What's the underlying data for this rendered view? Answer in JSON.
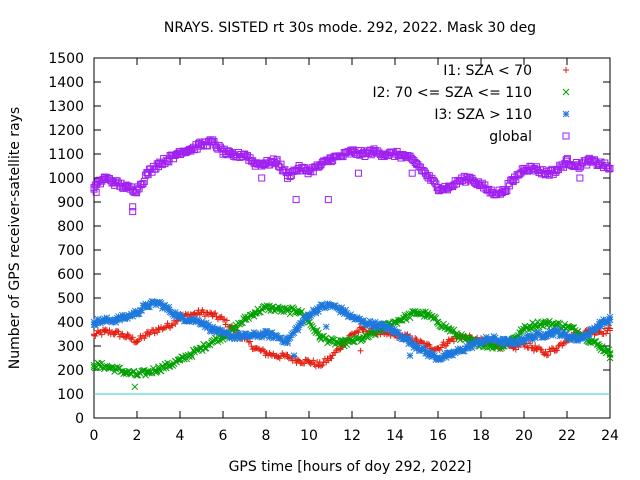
{
  "chart_data": {
    "type": "scatter",
    "title": "NRAYS. SISTED rt 30s mode. 292, 2022. Mask 30 deg",
    "xlabel": "GPS time [hours of doy 292, 2022]",
    "ylabel": "Number of GPS receiver-satellite rays",
    "xlim": [
      0,
      24
    ],
    "ylim": [
      0,
      1500
    ],
    "xticks": [
      0,
      2,
      4,
      6,
      8,
      10,
      12,
      14,
      16,
      18,
      20,
      22,
      24
    ],
    "yticks": [
      0,
      100,
      200,
      300,
      400,
      500,
      600,
      700,
      800,
      900,
      1000,
      1100,
      1200,
      1300,
      1400,
      1500
    ],
    "reference_line": {
      "y": 100,
      "color": "#33cccc"
    },
    "legend_position": "top-right",
    "series": [
      {
        "name": "I1: SZA < 70",
        "marker": "plus",
        "color": "#e51e10",
        "x": [
          0,
          0.5,
          1,
          1.5,
          2,
          2.5,
          3,
          3.5,
          4,
          4.5,
          5,
          5.5,
          6,
          6.5,
          7,
          7.5,
          8,
          8.5,
          9,
          9.5,
          10,
          10.5,
          11,
          11.5,
          12,
          12.5,
          13,
          13.5,
          14,
          14.5,
          15,
          15.5,
          16,
          16.5,
          17,
          17.5,
          18,
          18.5,
          19,
          19.5,
          20,
          20.5,
          21,
          21.5,
          22,
          22.5,
          23,
          23.5,
          24
        ],
        "y": [
          345,
          360,
          355,
          340,
          320,
          350,
          370,
          385,
          420,
          430,
          440,
          430,
          410,
          370,
          330,
          290,
          270,
          260,
          255,
          240,
          235,
          220,
          250,
          300,
          350,
          370,
          360,
          350,
          345,
          340,
          320,
          300,
          290,
          320,
          340,
          330,
          320,
          310,
          300,
          290,
          310,
          290,
          270,
          290,
          330,
          350,
          360,
          360,
          365
        ]
      },
      {
        "name": "I2: 70 <= SZA <= 110",
        "marker": "cross",
        "color": "#00a000",
        "x": [
          0,
          0.5,
          1,
          1.5,
          2,
          2.5,
          3,
          3.5,
          4,
          4.5,
          5,
          5.5,
          6,
          6.5,
          7,
          7.5,
          8,
          8.5,
          9,
          9.5,
          10,
          10.5,
          11,
          11.5,
          12,
          12.5,
          13,
          13.5,
          14,
          14.5,
          15,
          15.5,
          16,
          16.5,
          17,
          17.5,
          18,
          18.5,
          19,
          19.5,
          20,
          20.5,
          21,
          21.5,
          22,
          22.5,
          23,
          23.5,
          24
        ],
        "y": [
          220,
          215,
          205,
          190,
          180,
          190,
          205,
          220,
          240,
          265,
          290,
          320,
          340,
          370,
          410,
          440,
          460,
          455,
          445,
          450,
          400,
          340,
          320,
          310,
          320,
          330,
          350,
          380,
          400,
          420,
          440,
          430,
          400,
          370,
          340,
          320,
          310,
          300,
          300,
          330,
          370,
          390,
          395,
          390,
          380,
          360,
          330,
          300,
          270
        ]
      },
      {
        "name": "I3: SZA > 110",
        "marker": "star",
        "color": "#1e78dc",
        "x": [
          0,
          0.5,
          1,
          1.5,
          2,
          2.5,
          3,
          3.5,
          4,
          4.5,
          5,
          5.5,
          6,
          6.5,
          7,
          7.5,
          8,
          8.5,
          9,
          9.5,
          10,
          10.5,
          11,
          11.5,
          12,
          12.5,
          13,
          13.5,
          14,
          14.5,
          15,
          15.5,
          16,
          16.5,
          17,
          17.5,
          18,
          18.5,
          19,
          19.5,
          20,
          20.5,
          21,
          21.5,
          22,
          22.5,
          23,
          23.5,
          24
        ],
        "y": [
          400,
          405,
          410,
          420,
          440,
          470,
          480,
          450,
          420,
          410,
          400,
          370,
          350,
          340,
          340,
          345,
          350,
          340,
          320,
          380,
          430,
          460,
          470,
          450,
          420,
          400,
          390,
          380,
          360,
          330,
          300,
          270,
          250,
          260,
          280,
          300,
          320,
          330,
          320,
          310,
          330,
          340,
          350,
          360,
          340,
          330,
          350,
          390,
          410
        ]
      },
      {
        "name": "global",
        "marker": "square",
        "color": "#a020f0",
        "x": [
          0,
          0.5,
          1,
          1.5,
          2,
          2.5,
          3,
          3.5,
          4,
          4.5,
          5,
          5.5,
          6,
          6.5,
          7,
          7.5,
          8,
          8.5,
          9,
          9.5,
          10,
          10.5,
          11,
          11.5,
          12,
          12.5,
          13,
          13.5,
          14,
          14.5,
          15,
          15.5,
          16,
          16.5,
          17,
          17.5,
          18,
          18.5,
          19,
          19.5,
          20,
          20.5,
          21,
          21.5,
          22,
          22.5,
          23,
          23.5,
          24
        ],
        "y": [
          960,
          1000,
          980,
          960,
          950,
          1020,
          1060,
          1080,
          1110,
          1120,
          1140,
          1150,
          1110,
          1090,
          1100,
          1060,
          1060,
          1070,
          1010,
          1040,
          1030,
          1050,
          1080,
          1090,
          1110,
          1100,
          1110,
          1100,
          1100,
          1090,
          1060,
          1010,
          960,
          960,
          990,
          1000,
          970,
          940,
          940,
          990,
          1040,
          1040,
          1020,
          1030,
          1070,
          1050,
          1070,
          1060,
          1040
        ]
      }
    ],
    "outliers": [
      {
        "series": "global",
        "x": 1.8,
        "y": 860
      },
      {
        "series": "global",
        "x": 1.8,
        "y": 880
      },
      {
        "series": "global",
        "x": 9.4,
        "y": 910
      },
      {
        "series": "global",
        "x": 10.9,
        "y": 910
      },
      {
        "series": "global",
        "x": 0.1,
        "y": 940
      },
      {
        "series": "global",
        "x": 7.8,
        "y": 1000
      },
      {
        "series": "global",
        "x": 12.3,
        "y": 1020
      },
      {
        "series": "global",
        "x": 14.8,
        "y": 1020
      },
      {
        "series": "global",
        "x": 22.6,
        "y": 1000
      },
      {
        "series": "global",
        "x": 3.7,
        "y": 1080
      },
      {
        "series": "I2: 70 <= SZA <= 110",
        "x": 1.9,
        "y": 130
      },
      {
        "series": "I2: 70 <= SZA <= 110",
        "x": 24,
        "y": 250
      },
      {
        "series": "I3: SZA > 110",
        "x": 9.3,
        "y": 260
      },
      {
        "series": "I3: SZA > 110",
        "x": 14.7,
        "y": 260
      },
      {
        "series": "I3: SZA > 110",
        "x": 10.8,
        "y": 380
      },
      {
        "series": "I1: SZA < 70",
        "x": 12.4,
        "y": 280
      }
    ]
  }
}
